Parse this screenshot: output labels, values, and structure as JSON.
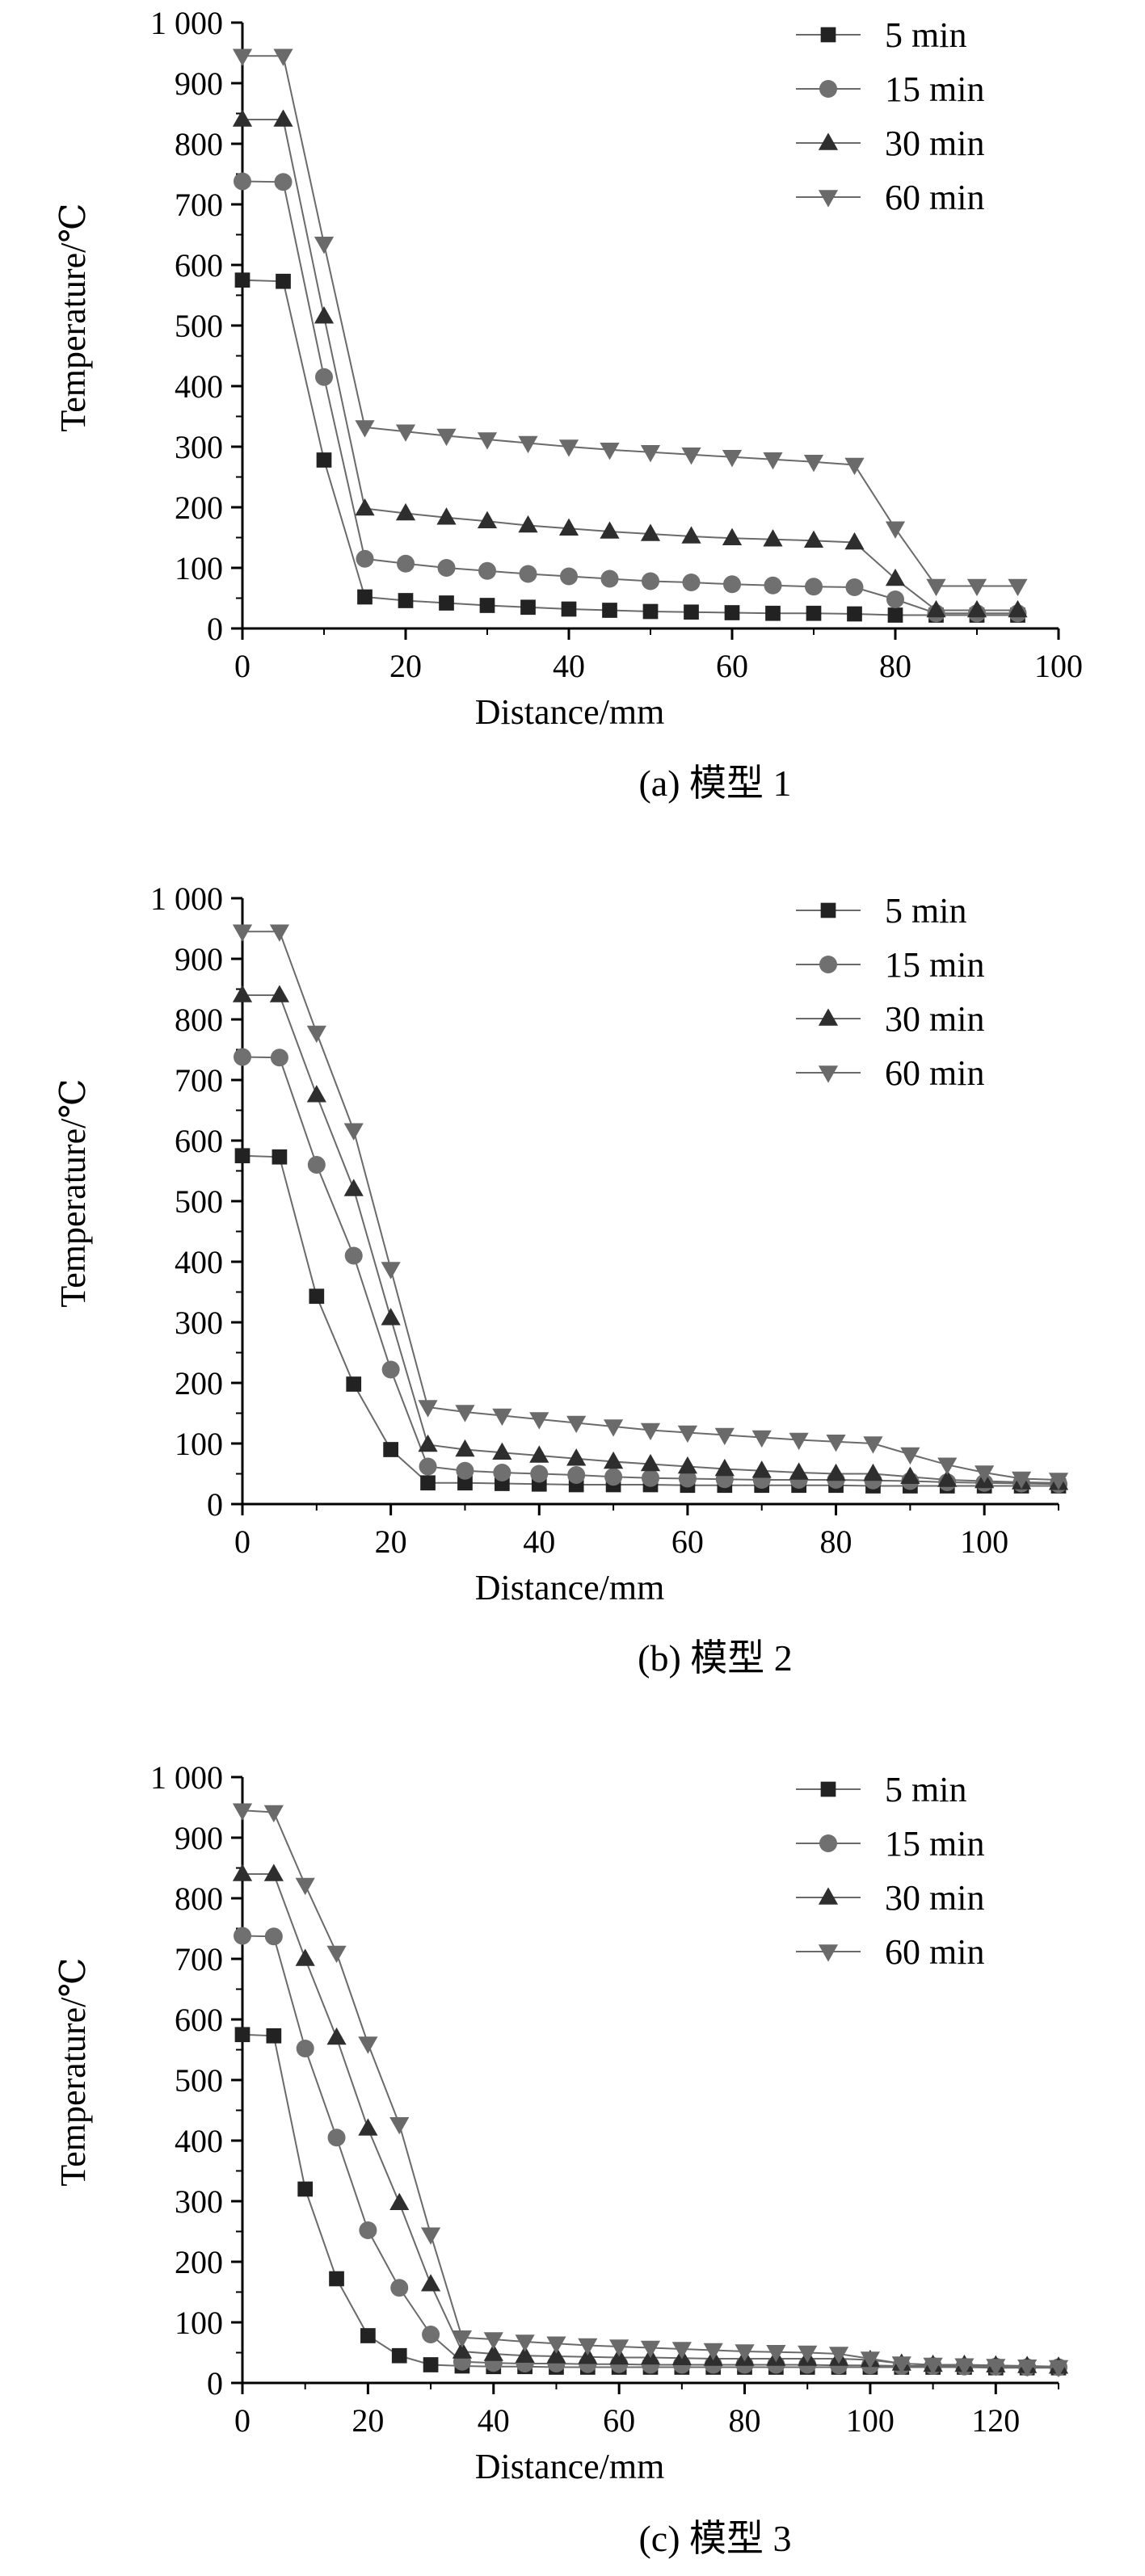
{
  "chart_data": [
    {
      "type": "line",
      "caption": "(a) 模型 1",
      "xlabel": "Distance/mm",
      "ylabel": "Temperature/℃",
      "xlim": [
        0,
        100
      ],
      "ylim": [
        0,
        1000
      ],
      "xticks": [
        0,
        20,
        40,
        60,
        80,
        100
      ],
      "xtick_labels": [
        "0",
        "20",
        "40",
        "60",
        "80",
        "100"
      ],
      "yticks": [
        0,
        100,
        200,
        300,
        400,
        500,
        600,
        700,
        800,
        900,
        1000
      ],
      "ytick_labels": [
        "0",
        "100",
        "200",
        "300",
        "400",
        "500",
        "600",
        "700",
        "800",
        "900",
        "1 000"
      ],
      "legend_position": "top-right",
      "x": [
        0,
        5,
        10,
        15,
        20,
        25,
        30,
        35,
        40,
        45,
        50,
        55,
        60,
        65,
        70,
        75,
        80,
        85,
        90,
        95
      ],
      "series": [
        {
          "name": "5 min",
          "marker": "square",
          "values": [
            575,
            573,
            278,
            52,
            46,
            42,
            38,
            35,
            32,
            30,
            28,
            27,
            26,
            25,
            25,
            24,
            22,
            22,
            22,
            22
          ]
        },
        {
          "name": "15 min",
          "marker": "circle",
          "values": [
            738,
            737,
            415,
            115,
            107,
            100,
            95,
            90,
            86,
            82,
            78,
            76,
            73,
            71,
            69,
            68,
            48,
            25,
            25,
            25
          ]
        },
        {
          "name": "30 min",
          "marker": "triangle-up",
          "values": [
            840,
            840,
            515,
            198,
            190,
            183,
            177,
            170,
            165,
            160,
            156,
            152,
            149,
            147,
            145,
            142,
            82,
            30,
            30,
            30
          ]
        },
        {
          "name": "60 min",
          "marker": "triangle-down",
          "values": [
            945,
            945,
            635,
            332,
            325,
            318,
            312,
            306,
            300,
            295,
            291,
            287,
            283,
            279,
            275,
            270,
            165,
            70,
            70,
            70
          ]
        }
      ]
    },
    {
      "type": "line",
      "caption": "(b) 模型 2",
      "xlabel": "Distance/mm",
      "ylabel": "Temperature/℃",
      "xlim": [
        0,
        110
      ],
      "ylim": [
        0,
        1000
      ],
      "xticks": [
        0,
        20,
        40,
        60,
        80,
        100
      ],
      "xtick_labels": [
        "0",
        "20",
        "40",
        "60",
        "80",
        "100"
      ],
      "yticks": [
        0,
        100,
        200,
        300,
        400,
        500,
        600,
        700,
        800,
        900,
        1000
      ],
      "ytick_labels": [
        "0",
        "100",
        "200",
        "300",
        "400",
        "500",
        "600",
        "700",
        "800",
        "900",
        "1 000"
      ],
      "legend_position": "top-right",
      "x": [
        0,
        5,
        10,
        15,
        20,
        25,
        30,
        35,
        40,
        45,
        50,
        55,
        60,
        65,
        70,
        75,
        80,
        85,
        90,
        95,
        100,
        105,
        110
      ],
      "series": [
        {
          "name": "5 min",
          "marker": "square",
          "values": [
            575,
            573,
            343,
            198,
            90,
            35,
            35,
            34,
            33,
            32,
            32,
            32,
            31,
            31,
            31,
            31,
            31,
            30,
            30,
            30,
            30,
            30,
            30
          ]
        },
        {
          "name": "15 min",
          "marker": "circle",
          "values": [
            738,
            737,
            560,
            410,
            222,
            62,
            55,
            52,
            50,
            48,
            45,
            43,
            42,
            41,
            40,
            40,
            40,
            39,
            38,
            36,
            35,
            34,
            33
          ]
        },
        {
          "name": "30 min",
          "marker": "triangle-up",
          "values": [
            840,
            840,
            675,
            520,
            307,
            98,
            90,
            85,
            80,
            75,
            70,
            66,
            62,
            58,
            55,
            52,
            50,
            50,
            45,
            40,
            38,
            36,
            35
          ]
        },
        {
          "name": "60 min",
          "marker": "triangle-down",
          "values": [
            945,
            945,
            778,
            617,
            388,
            160,
            152,
            146,
            140,
            134,
            128,
            122,
            118,
            114,
            110,
            106,
            103,
            100,
            82,
            65,
            52,
            42,
            40
          ]
        }
      ]
    },
    {
      "type": "line",
      "caption": "(c) 模型 3",
      "xlabel": "Distance/mm",
      "ylabel": "Temperature/℃",
      "xlim": [
        0,
        130
      ],
      "ylim": [
        0,
        1000
      ],
      "xticks": [
        0,
        20,
        40,
        60,
        80,
        100,
        120
      ],
      "xtick_labels": [
        "0",
        "20",
        "40",
        "60",
        "80",
        "100",
        "120"
      ],
      "yticks": [
        0,
        100,
        200,
        300,
        400,
        500,
        600,
        700,
        800,
        900,
        1000
      ],
      "ytick_labels": [
        "0",
        "100",
        "200",
        "300",
        "400",
        "500",
        "600",
        "700",
        "800",
        "900",
        "1 000"
      ],
      "legend_position": "top-right",
      "x": [
        0,
        5,
        10,
        15,
        20,
        25,
        30,
        35,
        40,
        45,
        50,
        55,
        60,
        65,
        70,
        75,
        80,
        85,
        90,
        95,
        100,
        105,
        110,
        115,
        120,
        125,
        130
      ],
      "series": [
        {
          "name": "5 min",
          "marker": "square",
          "values": [
            575,
            573,
            320,
            172,
            78,
            45,
            30,
            28,
            27,
            27,
            26,
            26,
            26,
            26,
            26,
            26,
            26,
            26,
            26,
            26,
            26,
            26,
            26,
            26,
            25,
            25,
            25
          ]
        },
        {
          "name": "15 min",
          "marker": "circle",
          "values": [
            738,
            737,
            552,
            405,
            252,
            157,
            80,
            35,
            33,
            32,
            32,
            31,
            31,
            30,
            30,
            30,
            30,
            30,
            30,
            29,
            29,
            28,
            28,
            27,
            27,
            26,
            26
          ]
        },
        {
          "name": "30 min",
          "marker": "triangle-up",
          "values": [
            840,
            840,
            700,
            570,
            420,
            297,
            163,
            52,
            48,
            45,
            44,
            43,
            42,
            42,
            41,
            40,
            40,
            40,
            40,
            40,
            38,
            32,
            30,
            30,
            29,
            28,
            27
          ]
        },
        {
          "name": "60 min",
          "marker": "triangle-down",
          "values": [
            945,
            942,
            822,
            710,
            560,
            427,
            245,
            75,
            72,
            68,
            65,
            62,
            60,
            58,
            56,
            54,
            52,
            51,
            50,
            48,
            40,
            32,
            30,
            29,
            28,
            27,
            26
          ]
        }
      ]
    }
  ]
}
